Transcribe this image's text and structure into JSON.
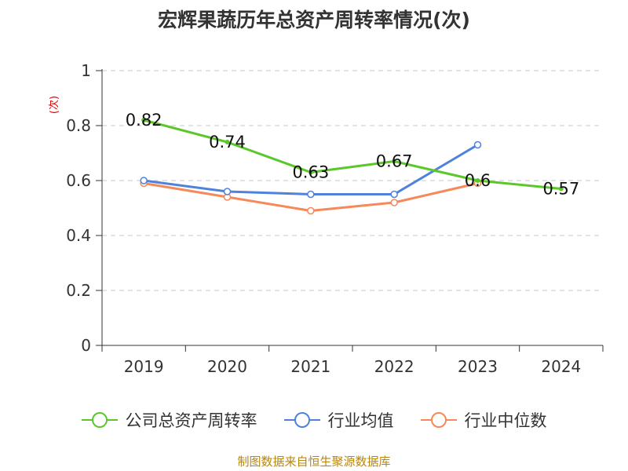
{
  "chart_data": {
    "type": "line",
    "title": "宏辉果蔬历年总资产周转率情况(次)",
    "ylabel": "(次)",
    "xlabel": "",
    "categories": [
      "2019",
      "2020",
      "2021",
      "2022",
      "2023",
      "2024"
    ],
    "ylim": [
      0,
      1
    ],
    "yticks": [
      0,
      0.2,
      0.4,
      0.6,
      0.8,
      1
    ],
    "ytick_labels": [
      "0",
      "0.2",
      "0.4",
      "0.6",
      "0.8",
      "1"
    ],
    "grid": true,
    "legend_position": "bottom",
    "series": [
      {
        "name": "公司总资产周转率",
        "color": "#5cc72b",
        "values": [
          0.82,
          0.74,
          0.63,
          0.67,
          0.6,
          0.57
        ],
        "data_labels": [
          "0.82",
          "0.74",
          "0.63",
          "0.67",
          "0.6",
          "0.57"
        ]
      },
      {
        "name": "行业均值",
        "color": "#4f81dd",
        "values": [
          0.6,
          0.56,
          0.55,
          0.55,
          0.73,
          null
        ]
      },
      {
        "name": "行业中位数",
        "color": "#f5895a",
        "values": [
          0.59,
          0.54,
          0.49,
          0.52,
          0.59,
          null
        ]
      }
    ]
  },
  "footer": {
    "source": "制图数据来自恒生聚源数据库"
  }
}
